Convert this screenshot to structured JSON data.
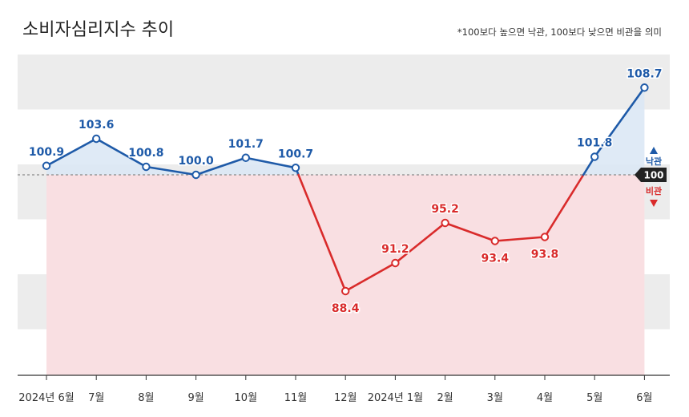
{
  "title": "소비자심리지수 추이",
  "note": "*100보다 높으면 낙관, 100보다 낮으면 비관을 의미",
  "chart_data": {
    "type": "line",
    "title": "소비자심리지수 추이",
    "categories": [
      "2024년 6월",
      "7월",
      "8월",
      "9월",
      "10월",
      "11월",
      "12월",
      "2024년 1월",
      "2월",
      "3월",
      "4월",
      "5월",
      "6월"
    ],
    "values": [
      100.9,
      103.6,
      100.8,
      100.0,
      101.7,
      100.7,
      88.4,
      91.2,
      95.2,
      93.4,
      93.8,
      101.8,
      108.7
    ],
    "value_labels": [
      "100.9",
      "103.6",
      "100.8",
      "100.0",
      "101.7",
      "100.7",
      "88.4",
      "91.2",
      "95.2",
      "93.4",
      "93.8",
      "101.8",
      "108.7"
    ],
    "ylim": [
      80,
      112
    ],
    "reference_value": 100,
    "reference_label": "100",
    "above_label": "낙관",
    "below_label": "비관",
    "colors": {
      "above_line": "#1e5aa8",
      "below_line": "#d92b2b",
      "above_fill": "#dce8f5",
      "below_fill": "#f9dfe2",
      "band": "#ececec",
      "ref_badge": "#222222"
    }
  }
}
